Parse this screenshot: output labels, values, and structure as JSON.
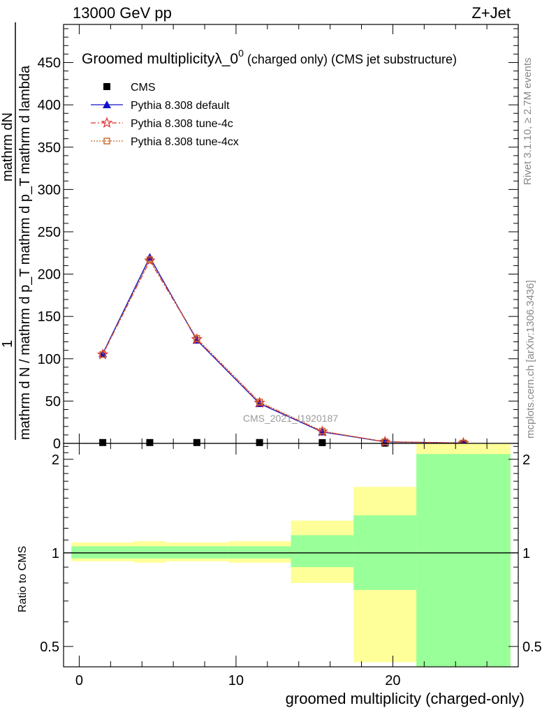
{
  "header": {
    "left": "13000 GeV pp",
    "right": "Z+Jet"
  },
  "side_labels": {
    "rivet": "Rivet 3.1.10, ≥ 2.7M events",
    "mcplots": "mcplots.cern.ch [arXiv:1306.3436]"
  },
  "main_panel": {
    "title_main": "Groomed multiplicityλ_0",
    "title_sup": "0",
    "title_rest": " (charged only) (CMS jet substructure)",
    "watermark": "CMS_2021_I1920187",
    "ylabel_top": "1",
    "ylabel_num": "mathrm dN",
    "ylabel_den": "mathrm d N / mathrm d p_T mathrm d p_T mathrm d lambda"
  },
  "ratio_panel": {
    "ylabel": "Ratio to CMS"
  },
  "chart_data": [
    {
      "type": "line",
      "xlim": [
        -1,
        28
      ],
      "ylim": [
        0,
        495
      ],
      "yticks": [
        0,
        50,
        100,
        150,
        200,
        250,
        300,
        350,
        400,
        450
      ],
      "ytick_labels": [
        "0",
        "50",
        "100",
        "150",
        "200",
        "250",
        "300",
        "350",
        "400",
        "450"
      ],
      "legend": [
        "CMS",
        "Pythia 8.308 default",
        "Pythia 8.308 tune-4c",
        "Pythia 8.308 tune-4cx"
      ],
      "x": [
        1.5,
        4.5,
        7.5,
        11.5,
        15.5,
        19.5,
        24.5
      ],
      "series": [
        {
          "name": "CMS",
          "color": "#000000",
          "marker": "square",
          "values": [
            1,
            1,
            1,
            1,
            0.9,
            0.3,
            0.05
          ]
        },
        {
          "name": "Pythia 8.308 default",
          "color": "#1010c8",
          "marker": "triangle",
          "values": [
            106,
            220,
            122,
            47,
            13.5,
            1.8,
            0.4
          ]
        },
        {
          "name": "Pythia 8.308 tune-4c",
          "color": "#dd3030",
          "marker": "star",
          "values": [
            105,
            216,
            123,
            48,
            14,
            1.9,
            0.4
          ]
        },
        {
          "name": "Pythia 8.308 tune-4cx",
          "color": "#c86428",
          "marker": "open-square",
          "values": [
            105,
            217,
            124,
            49,
            14.5,
            2.0,
            0.4
          ]
        }
      ]
    },
    {
      "type": "area",
      "xlabel": "groomed multiplicity (charged-only)",
      "ylabel": "Ratio to CMS",
      "xlim": [
        -1,
        28
      ],
      "ylim": [
        0.43,
        2.25
      ],
      "xticks": [
        0,
        10,
        20
      ],
      "xtick_labels": [
        "0",
        "10",
        "20"
      ],
      "yticks": [
        0.5,
        1,
        2
      ],
      "ytick_labels": [
        "0.5",
        "1",
        "2"
      ],
      "bins": [
        {
          "x0": -0.5,
          "x1": 3.5,
          "yellow": [
            0.94,
            1.08
          ],
          "green": [
            0.96,
            1.05
          ]
        },
        {
          "x0": 3.5,
          "x1": 5.5,
          "yellow": [
            0.93,
            1.09
          ],
          "green": [
            0.96,
            1.05
          ]
        },
        {
          "x0": 5.5,
          "x1": 9.5,
          "yellow": [
            0.94,
            1.08
          ],
          "green": [
            0.96,
            1.05
          ]
        },
        {
          "x0": 9.5,
          "x1": 13.5,
          "yellow": [
            0.93,
            1.09
          ],
          "green": [
            0.96,
            1.05
          ]
        },
        {
          "x0": 13.5,
          "x1": 17.5,
          "yellow": [
            0.8,
            1.27
          ],
          "green": [
            0.9,
            1.14
          ]
        },
        {
          "x0": 17.5,
          "x1": 21.5,
          "yellow": [
            0.445,
            1.63
          ],
          "green": [
            0.76,
            1.32
          ]
        },
        {
          "x0": 21.5,
          "x1": 27.5,
          "yellow": [
            0.43,
            2.25
          ],
          "green": [
            0.43,
            2.08
          ]
        }
      ]
    }
  ]
}
